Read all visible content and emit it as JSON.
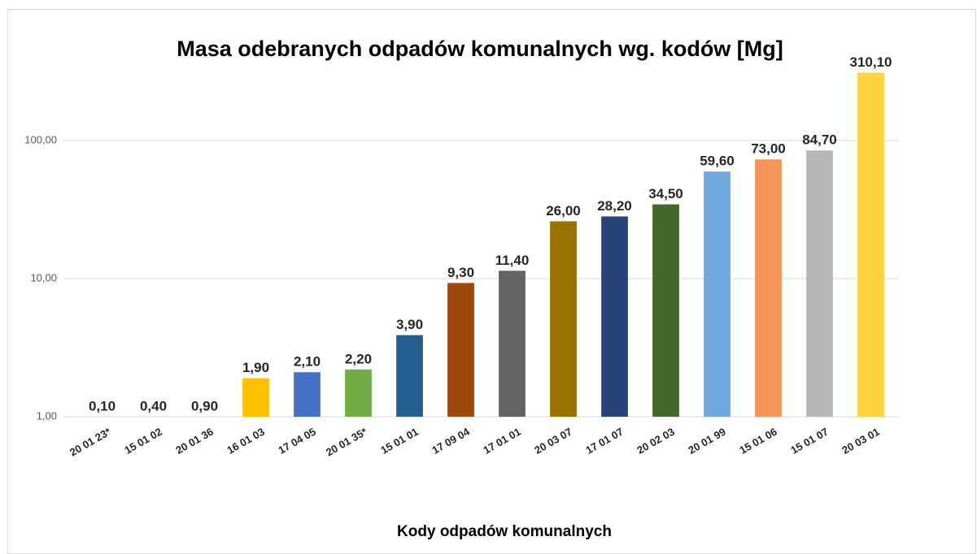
{
  "chart_data": {
    "type": "bar",
    "title": "Masa odebranych odpadów komunalnych  wg. kodów [Mg]",
    "x_label": "Kody odpadów komunalnych",
    "categories": [
      "20 01 23*",
      "15 01 02",
      "20 01 36",
      "16 01 03",
      "17 04 05",
      "20 01 35*",
      "15 01 01",
      "17 09 04",
      "17 01 01",
      "20 03 07",
      "17 01 07",
      "20 02 03",
      "20 01 99",
      "15 01 06",
      "15 01 07",
      "20 03 01"
    ],
    "values": [
      0.1,
      0.4,
      0.9,
      1.9,
      2.1,
      2.2,
      3.9,
      9.3,
      11.4,
      26,
      28.2,
      34.5,
      59.6,
      73,
      84.7,
      310.1
    ],
    "value_labels": [
      "0,10",
      "0,40",
      "0,90",
      "1,90",
      "2,10",
      "2,20",
      "3,90",
      "9,30",
      "11,40",
      "26,00",
      "28,20",
      "34,50",
      "59,60",
      "73,00",
      "84,70",
      "310,10"
    ],
    "colors": [
      "#4472c4",
      "#ed7d31",
      "#a5a5a5",
      "#ffc000",
      "#4472c4",
      "#70ad47",
      "#255e91",
      "#9e480e",
      "#636363",
      "#997300",
      "#264478",
      "#43682b",
      "#6fa8dc",
      "#f4945a",
      "#b7b7b7",
      "#ffd23f"
    ],
    "log_scale": true,
    "ylim": [
      1,
      1000
    ],
    "yticks": [
      {
        "value": 1,
        "label": "1,00"
      },
      {
        "value": 10,
        "label": "10,00"
      },
      {
        "value": 100,
        "label": "100,00"
      }
    ],
    "grid": true
  }
}
